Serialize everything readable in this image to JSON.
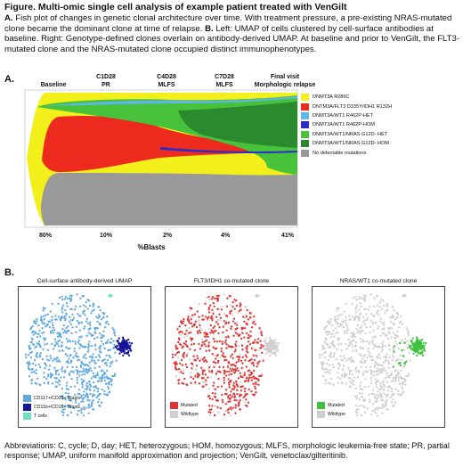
{
  "header": {
    "title": "Figure. Multi-omic single cell analysis of example patient treated with VenGilt",
    "caption_a_label": "A.",
    "caption_a_text": " Fish plot of changes in genetic clonal architecture over time. With treatment pressure, a pre-existing NRAS-mutated clone became the dominant clone at time of relapse. ",
    "caption_b_label": "B.",
    "caption_b_text": " Left: UMAP of cells clustered by cell-surface antibodies at baseline. Right: Genotype-defined clones overlain on antibody-derived UMAP. At baseline and prior to VenGilt, the FLT3-mutated clone and the NRAS-mutated clone occupied distinct immunophenotypes."
  },
  "panel_a": {
    "letter": "A.",
    "timepoints": [
      {
        "line1": "",
        "line2": "Baseline"
      },
      {
        "line1": "C1D28",
        "line2": "PR"
      },
      {
        "line1": "C4D28",
        "line2": "MLFS"
      },
      {
        "line1": "C7D28",
        "line2": "MLFS"
      },
      {
        "line1": "Final visit",
        "line2": "Morphologic relapse"
      }
    ],
    "blasts": [
      "80%",
      "10%",
      "2%",
      "4%",
      "41%"
    ],
    "blasts_title": "%Blasts",
    "legend": [
      {
        "label": "DNMT3A R286C",
        "color": "#f2ef1b"
      },
      {
        "label": "DNTM3A/FLT3 D335Y/IDH1 R132H",
        "color": "#ec2a1e"
      },
      {
        "label": "DNMT3A/WT1 R462P-HET",
        "color": "#5fb6ea"
      },
      {
        "label": "DNMT3A/WT1 R462P-HOM",
        "color": "#2c2cc9"
      },
      {
        "label": "DNMT3A/WT1/NRAS G12D- HET",
        "color": "#47c23a"
      },
      {
        "label": "DNMT3A/WT1/NRAS G12D- HOM",
        "color": "#2b8a2d"
      },
      {
        "label": "No detectable mutations",
        "color": "#999999"
      }
    ]
  },
  "panel_b": {
    "letter": "B.",
    "umaps": [
      {
        "title": "Cell-surface antibody-derived UMAP",
        "legend": [
          {
            "label": "CD117+/CD33+ Blasts",
            "color": "#62a8e0"
          },
          {
            "label": "CD11b+/CD13+ Blasts",
            "color": "#16169a"
          },
          {
            "label": "T cells",
            "color": "#6fe0c2"
          }
        ]
      },
      {
        "title": "FLT3/IDH1 co-mutated clone",
        "legend": [
          {
            "label": "Mutated",
            "color": "#e03434"
          },
          {
            "label": "Wildtype",
            "color": "#cfcfcf"
          }
        ]
      },
      {
        "title": "NRAS/WT1 co-mutated clone",
        "legend": [
          {
            "label": "Mutated",
            "color": "#3fc13f"
          },
          {
            "label": "Wildtype",
            "color": "#cfcfcf"
          }
        ]
      }
    ]
  },
  "footer": "Abbreviations: C, cycle; D, day; HET, heterozygous; HOM, homozygous; MLFS, morphologic leukemia-free state; PR, partial response; UMAP, uniform manifold approximation and projection; VenGilt, venetoclax/gilteritinib."
}
